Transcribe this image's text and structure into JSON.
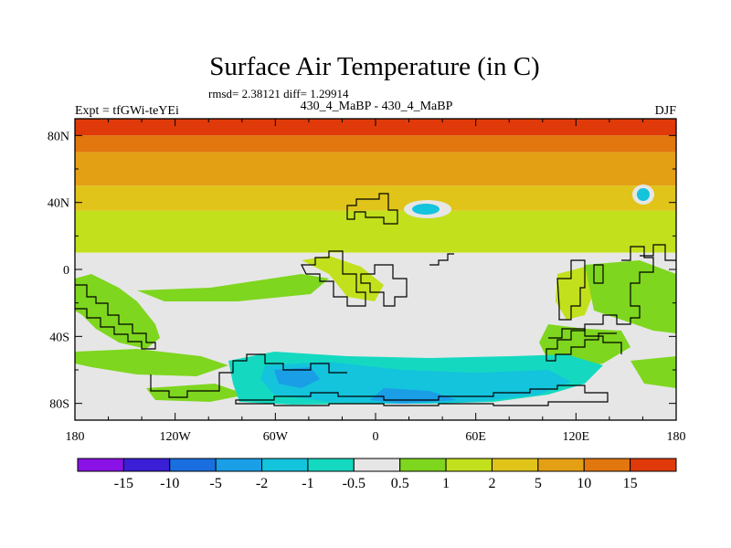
{
  "chart_data": {
    "type": "heatmap",
    "title": "Surface Air Temperature (in C)",
    "stats_line": "rmsd= 2.38121 diff= 1.29914",
    "left_label": "Expt = tfGWi-teYEi",
    "center_label": "430_4_MaBP - 430_4_MaBP",
    "right_label": "DJF",
    "x_ticks": [
      "180",
      "120W",
      "60W",
      "0",
      "60E",
      "120E",
      "180"
    ],
    "x_tick_values": [
      -180,
      -120,
      -60,
      0,
      60,
      120,
      180
    ],
    "y_ticks": [
      "80N",
      "40N",
      "0",
      "40S",
      "80S"
    ],
    "y_tick_values": [
      80,
      40,
      0,
      -40,
      -80
    ],
    "xlim": [
      -180,
      180
    ],
    "ylim": [
      -90,
      90
    ],
    "colorbar_labels": [
      "-15",
      "-10",
      "-5",
      "-2",
      "-1",
      "-0.5",
      "0.5",
      "1",
      "2",
      "5",
      "10",
      "15"
    ],
    "colorbar_colors": [
      "#8a12e6",
      "#3a1fd6",
      "#1a6fe0",
      "#1a9ee6",
      "#14c3dc",
      "#14d9c0",
      "#e6e6e6",
      "#7ed61e",
      "#c3e01c",
      "#e0c419",
      "#e4a015",
      "#e2760f",
      "#e03a0a"
    ],
    "zonal_bands": [
      {
        "lat": [
          80,
          90
        ],
        "value": 15
      },
      {
        "lat": [
          70,
          80
        ],
        "value": 10
      },
      {
        "lat": [
          50,
          70
        ],
        "value": 5
      },
      {
        "lat": [
          35,
          50
        ],
        "value": 2
      },
      {
        "lat": [
          10,
          35
        ],
        "value": 1
      },
      {
        "lat": [
          -90,
          10
        ],
        "value": 0
      }
    ]
  }
}
